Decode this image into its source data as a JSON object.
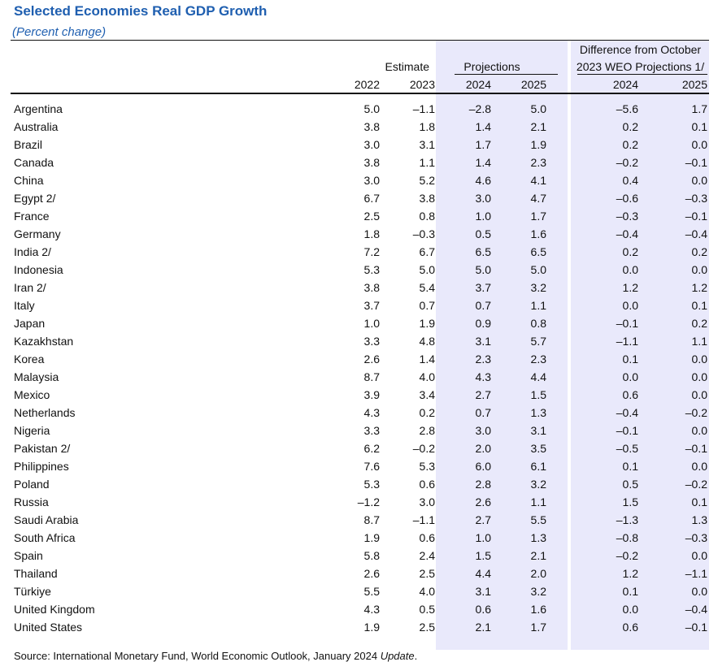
{
  "title": "Selected Economies Real GDP Growth",
  "subtitle": "(Percent change)",
  "headers": {
    "estimate": "Estimate",
    "projections": "Projections",
    "difference_line1": "Difference from October",
    "difference_line2": "2023 WEO Projections 1/",
    "years": [
      "2022",
      "2023",
      "2024",
      "2025",
      "2024",
      "2025"
    ]
  },
  "rows": [
    {
      "country": "Argentina",
      "values": [
        "5.0",
        "–1.1",
        "–2.8",
        "5.0",
        "–5.6",
        "1.7"
      ]
    },
    {
      "country": "Australia",
      "values": [
        "3.8",
        "1.8",
        "1.4",
        "2.1",
        "0.2",
        "0.1"
      ]
    },
    {
      "country": "Brazil",
      "values": [
        "3.0",
        "3.1",
        "1.7",
        "1.9",
        "0.2",
        "0.0"
      ]
    },
    {
      "country": "Canada",
      "values": [
        "3.8",
        "1.1",
        "1.4",
        "2.3",
        "–0.2",
        "–0.1"
      ]
    },
    {
      "country": "China",
      "values": [
        "3.0",
        "5.2",
        "4.6",
        "4.1",
        "0.4",
        "0.0"
      ]
    },
    {
      "country": "Egypt 2/",
      "values": [
        "6.7",
        "3.8",
        "3.0",
        "4.7",
        "–0.6",
        "–0.3"
      ]
    },
    {
      "country": "France",
      "values": [
        "2.5",
        "0.8",
        "1.0",
        "1.7",
        "–0.3",
        "–0.1"
      ]
    },
    {
      "country": "Germany",
      "values": [
        "1.8",
        "–0.3",
        "0.5",
        "1.6",
        "–0.4",
        "–0.4"
      ]
    },
    {
      "country": "India 2/",
      "values": [
        "7.2",
        "6.7",
        "6.5",
        "6.5",
        "0.2",
        "0.2"
      ]
    },
    {
      "country": "Indonesia",
      "values": [
        "5.3",
        "5.0",
        "5.0",
        "5.0",
        "0.0",
        "0.0"
      ]
    },
    {
      "country": "Iran 2/",
      "values": [
        "3.8",
        "5.4",
        "3.7",
        "3.2",
        "1.2",
        "1.2"
      ]
    },
    {
      "country": "Italy",
      "values": [
        "3.7",
        "0.7",
        "0.7",
        "1.1",
        "0.0",
        "0.1"
      ]
    },
    {
      "country": "Japan",
      "values": [
        "1.0",
        "1.9",
        "0.9",
        "0.8",
        "–0.1",
        "0.2"
      ]
    },
    {
      "country": "Kazakhstan",
      "values": [
        "3.3",
        "4.8",
        "3.1",
        "5.7",
        "–1.1",
        "1.1"
      ]
    },
    {
      "country": "Korea",
      "values": [
        "2.6",
        "1.4",
        "2.3",
        "2.3",
        "0.1",
        "0.0"
      ]
    },
    {
      "country": "Malaysia",
      "values": [
        "8.7",
        "4.0",
        "4.3",
        "4.4",
        "0.0",
        "0.0"
      ]
    },
    {
      "country": "Mexico",
      "values": [
        "3.9",
        "3.4",
        "2.7",
        "1.5",
        "0.6",
        "0.0"
      ]
    },
    {
      "country": "Netherlands",
      "values": [
        "4.3",
        "0.2",
        "0.7",
        "1.3",
        "–0.4",
        "–0.2"
      ]
    },
    {
      "country": "Nigeria",
      "values": [
        "3.3",
        "2.8",
        "3.0",
        "3.1",
        "–0.1",
        "0.0"
      ]
    },
    {
      "country": "Pakistan 2/",
      "values": [
        "6.2",
        "–0.2",
        "2.0",
        "3.5",
        "–0.5",
        "–0.1"
      ]
    },
    {
      "country": "Philippines",
      "values": [
        "7.6",
        "5.3",
        "6.0",
        "6.1",
        "0.1",
        "0.0"
      ]
    },
    {
      "country": "Poland",
      "values": [
        "5.3",
        "0.6",
        "2.8",
        "3.2",
        "0.5",
        "–0.2"
      ]
    },
    {
      "country": "Russia",
      "values": [
        "–1.2",
        "3.0",
        "2.6",
        "1.1",
        "1.5",
        "0.1"
      ]
    },
    {
      "country": "Saudi Arabia",
      "values": [
        "8.7",
        "–1.1",
        "2.7",
        "5.5",
        "–1.3",
        "1.3"
      ]
    },
    {
      "country": "South Africa",
      "values": [
        "1.9",
        "0.6",
        "1.0",
        "1.3",
        "–0.8",
        "–0.3"
      ]
    },
    {
      "country": "Spain",
      "values": [
        "5.8",
        "2.4",
        "1.5",
        "2.1",
        "–0.2",
        "0.0"
      ]
    },
    {
      "country": "Thailand",
      "values": [
        "2.6",
        "2.5",
        "4.4",
        "2.0",
        "1.2",
        "–1.1"
      ]
    },
    {
      "country": "Türkiye",
      "values": [
        "5.5",
        "4.0",
        "3.1",
        "3.2",
        "0.1",
        "0.0"
      ]
    },
    {
      "country": "United Kingdom",
      "values": [
        "4.3",
        "0.5",
        "0.6",
        "1.6",
        "0.0",
        "–0.4"
      ]
    },
    {
      "country": "United States",
      "values": [
        "1.9",
        "2.5",
        "2.1",
        "1.7",
        "0.6",
        "–0.1"
      ]
    }
  ],
  "source_prefix": "Source: International Monetary Fund, World Economic Outlook, January 2024",
  "source_italic": "Update"
}
